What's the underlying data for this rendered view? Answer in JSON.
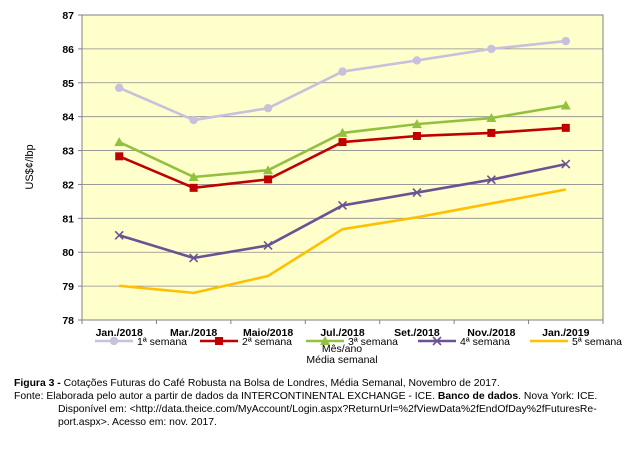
{
  "chart_data": {
    "type": "line",
    "categories": [
      "Jan./2018",
      "Mar./2018",
      "Maio/2018",
      "Jul./2018",
      "Set./2018",
      "Nov./2018",
      "Jan./2019"
    ],
    "ylabel": "US$¢/lbp",
    "xlabel": "Mês/ano",
    "legend_title": "Média semanal",
    "ylim": [
      78,
      87
    ],
    "yticks": [
      "78",
      "79",
      "80",
      "81",
      "82",
      "83",
      "84",
      "85",
      "86",
      "87"
    ],
    "grid": true,
    "legend_position": "bottom",
    "plot_background": "#FFFFCC",
    "series": [
      {
        "name": "1ª semana",
        "color": "#C9C0DC",
        "marker": "circle",
        "values": [
          84.85,
          83.9,
          84.25,
          85.33,
          85.66,
          86.0,
          86.23
        ]
      },
      {
        "name": "2ª semana",
        "color": "#C00000",
        "marker": "square",
        "values": [
          82.83,
          81.9,
          82.15,
          83.25,
          83.43,
          83.52,
          83.67
        ]
      },
      {
        "name": "3ª semana",
        "color": "#92C13F",
        "marker": "triangle",
        "values": [
          83.25,
          82.22,
          82.42,
          83.52,
          83.78,
          83.96,
          84.33
        ]
      },
      {
        "name": "4ª semana",
        "color": "#6B5393",
        "marker": "x",
        "values": [
          80.5,
          79.83,
          80.2,
          81.38,
          81.76,
          82.14,
          82.6
        ]
      },
      {
        "name": "5ª semana",
        "color": "#FFC000",
        "marker": "none",
        "values": [
          79.01,
          78.8,
          79.3,
          80.68,
          81.03,
          81.44,
          81.85
        ]
      }
    ]
  },
  "caption": {
    "figure_label": "Figura 3 -",
    "figure_text": " Cotações Futuras do Café Robusta na Bolsa de Londres, Média Semanal, Novembro de 2017.",
    "source_prefix": "Fonte: Elaborada pelo autor a partir de dados da INTERCONTINENTAL EXCHANGE - ICE. ",
    "source_bold": "Banco de dados",
    "source_mid": ". Nova York: ICE.",
    "source_line2": "Disponível em: <http://data.theice.com/MyAccount/Login.aspx?ReturnUrl=%2fViewData%2fEndOfDay%2fFuturesRe-",
    "source_line3": "port.aspx>. Acesso em: nov. 2017."
  }
}
